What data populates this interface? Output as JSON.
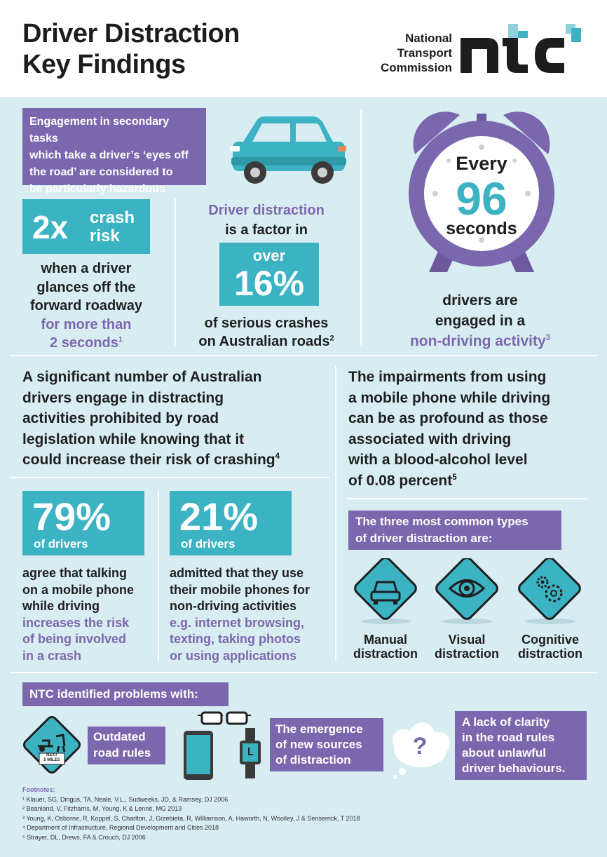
{
  "header": {
    "title_line1": "Driver Distraction",
    "title_line2": "Key Findings",
    "logo_line1": "National",
    "logo_line2": "Transport",
    "logo_line3": "Commission",
    "logo_mark": "ntc"
  },
  "intro": {
    "banner_line1": "Engagement in secondary tasks",
    "banner_line2": "which take a driver’s ‘eyes off",
    "banner_line3": "the road’ are considered to",
    "banner_line4": "be particularly hazardous"
  },
  "stat_crash": {
    "number": "2x",
    "label_line1": "crash",
    "label_line2": "risk",
    "desc_line1": "when a driver",
    "desc_line2": "glances off the",
    "desc_line3": "forward roadway",
    "highlight_line1": "for more than",
    "highlight_line2": "2 seconds",
    "ref": "1"
  },
  "stat_factor": {
    "lead_highlight": "Driver distraction",
    "lead_text": "is a factor in",
    "over": "over",
    "percent": "16%",
    "desc_line1": "of serious crashes",
    "desc_line2": "on Australian roads",
    "ref": "2"
  },
  "stat_clock": {
    "every": "Every",
    "number": "96",
    "seconds": "seconds",
    "desc_line1": "drivers are",
    "desc_line2": "engaged in a",
    "highlight": "non-driving activity",
    "ref": "3"
  },
  "paragraph_left": {
    "line1": "A significant number of Australian",
    "line2": "drivers engage in distracting",
    "line3": "activities prohibited by road",
    "line4": "legislation while knowing that it",
    "line5": "could increase their risk of crashing",
    "ref": "4"
  },
  "paragraph_right": {
    "line1": "The impairments from using",
    "line2": "a mobile phone while driving",
    "line3": "can be as profound as those",
    "line4": "associated with driving",
    "line5": "with a blood-alcohol level",
    "line6": "of 0.08 percent",
    "ref": "5"
  },
  "stat_79": {
    "percent": "79%",
    "label": "of drivers",
    "desc_line1": "agree that talking",
    "desc_line2": "on a mobile phone",
    "desc_line3": "while driving",
    "highlight_line1": "increases the risk",
    "highlight_line2": "of being involved",
    "highlight_line3": "in a crash"
  },
  "stat_21": {
    "percent": "21%",
    "label": "of drivers",
    "desc_line1": "admitted that they use",
    "desc_line2": "their mobile phones for",
    "desc_line3": "non-driving activities",
    "highlight_line1": "e.g. internet browsing,",
    "highlight_line2": "texting, taking photos",
    "highlight_line3": "or using applications"
  },
  "types": {
    "banner_line1": "The three most common types",
    "banner_line2": "of driver distraction are:",
    "items": [
      {
        "line1": "Manual",
        "line2": "distraction",
        "icon": "car-icon"
      },
      {
        "line1": "Visual",
        "line2": "distraction",
        "icon": "eye-icon"
      },
      {
        "line1": "Cognitive",
        "line2": "distraction",
        "icon": "gears-icon"
      }
    ]
  },
  "problems": {
    "banner": "NTC identified problems with:",
    "sign_line1": "NEXT",
    "sign_line2": "5 MILES",
    "item1_line1": "Outdated",
    "item1_line2": "road rules",
    "item2_line1": "The emergence",
    "item2_line2": "of new sources",
    "item2_line3": "of distraction",
    "question_mark": "?",
    "item3_line1": "A lack of clarity",
    "item3_line2": "in the road rules",
    "item3_line3": "about unlawful",
    "item3_line4": "driver behaviours."
  },
  "footnotes": {
    "heading": "Footnotes:",
    "items": [
      "¹ Klauer, SG, Dingus, TA, Neale, V.L., Sudweeks, JD, & Ramsey, DJ 2006",
      "² Beanland, V, Fitzharris, M, Young, K & Lenné, MG 2013",
      "³ Young, K, Osborne, R, Koppel, S, Charlton, J, Grzebieta, R, Williamson, A, Haworth, N, Woolley, J & Senserrick, T 2018",
      "⁴ Department of Infrastructure, Regional Development and Cities 2018",
      "⁵ Strayer, DL, Drews, FA & Crouch, DJ 2006"
    ]
  },
  "colors": {
    "purple": "#7b67ad",
    "teal": "#3bb3c3",
    "background": "#d8edf1"
  }
}
